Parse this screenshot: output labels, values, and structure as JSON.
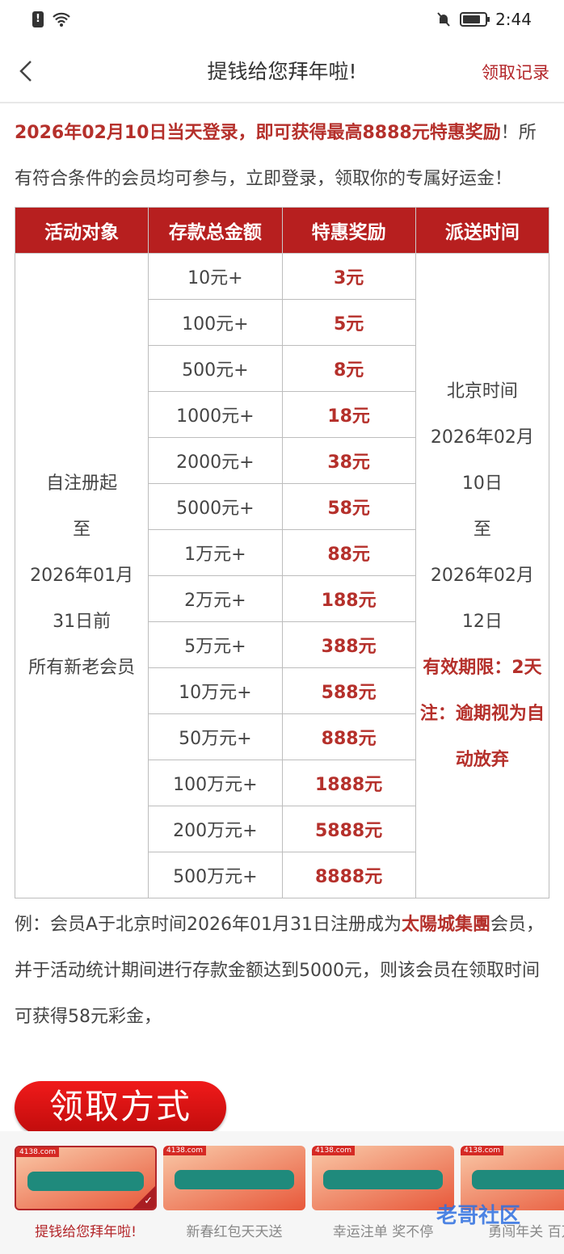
{
  "status_bar": {
    "time": "2:44",
    "icons": [
      "sim-alert-icon",
      "wifi-icon",
      "bell-off-icon",
      "battery-icon"
    ]
  },
  "header": {
    "title": "提钱给您拜年啦!",
    "right_link": "领取记录"
  },
  "intro": {
    "highlight_1": "2026年02月10日当天登录，即可获得最高8888元特惠奖励",
    "text": "！所有符合条件的会员均可参与，立即登录，领取你的专属好运金！"
  },
  "table": {
    "headers": [
      "活动对象",
      "存款总金额",
      "特惠奖励",
      "派送时间"
    ],
    "target_lines": [
      "自注册起",
      "至",
      "2026年01月",
      "31日前",
      "所有新老会员"
    ],
    "rows": [
      [
        "10元+",
        "3元"
      ],
      [
        "100元+",
        "5元"
      ],
      [
        "500元+",
        "8元"
      ],
      [
        "1000元+",
        "18元"
      ],
      [
        "2000元+",
        "38元"
      ],
      [
        "5000元+",
        "58元"
      ],
      [
        "1万元+",
        "88元"
      ],
      [
        "2万元+",
        "188元"
      ],
      [
        "5万元+",
        "388元"
      ],
      [
        "10万元+",
        "588元"
      ],
      [
        "50万元+",
        "888元"
      ],
      [
        "100万元+",
        "1888元"
      ],
      [
        "200万元+",
        "5888元"
      ],
      [
        "500万元+",
        "8888元"
      ]
    ],
    "time_lines": [
      "北京时间",
      "2026年02月",
      "10日",
      "至",
      "2026年02月",
      "12日"
    ],
    "time_notes": [
      "有效期限：2天",
      "注：逾期视为自动放弃"
    ]
  },
  "example": {
    "prefix": "例：会员A于北京时间2026年01月31日注册成为",
    "brand": "太陽城集團",
    "suffix": "会员，并于活动统计期间进行存款金额达到5000元，则该会员在领取时间可获得58元彩金，"
  },
  "claim_button": "领取方式",
  "activities": [
    {
      "label": "提钱给您拜年啦!",
      "selected": true
    },
    {
      "label": "新春红包天天送",
      "selected": false
    },
    {
      "label": "幸运注单 奖不停",
      "selected": false
    },
    {
      "label": "勇闯年关 百万",
      "selected": false
    }
  ],
  "thumb_tag": "4138.com",
  "watermark": "老哥社区",
  "colors": {
    "accent": "#b71f1f",
    "text_red": "#b5302b"
  }
}
